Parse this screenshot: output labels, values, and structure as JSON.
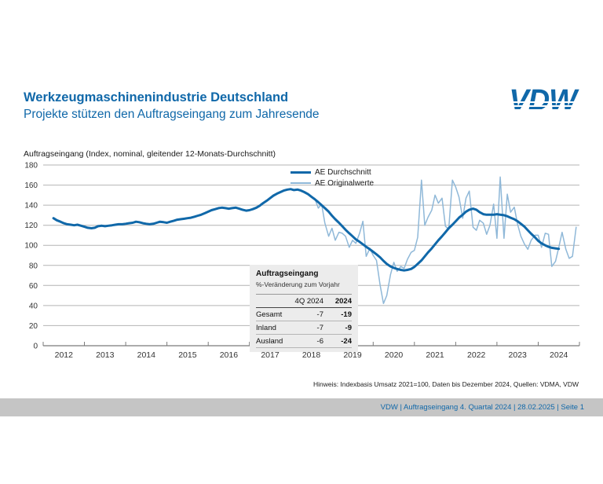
{
  "header": {
    "title": "Werkzeugmaschinenindustrie Deutschland",
    "subtitle": "Projekte stützen den Auftragseingang zum Jahresende",
    "logo_text": "VDW",
    "accent_color": "#1068A9"
  },
  "chart_data": {
    "type": "line",
    "title": "Auftragseingang (Index, nominal, gleitender 12-Monats-Durchschnitt)",
    "xlabel": "",
    "ylabel": "",
    "xlim": [
      2012,
      2025
    ],
    "ylim": [
      0,
      180
    ],
    "y_ticks": [
      0,
      20,
      40,
      60,
      80,
      100,
      120,
      140,
      160,
      180
    ],
    "x_ticks": [
      2012,
      2013,
      2014,
      2015,
      2016,
      2017,
      2018,
      2019,
      2020,
      2021,
      2022,
      2023,
      2024
    ],
    "grid": true,
    "legend_position": "top-center-inside",
    "colors": {
      "grid": "#b4b4b4",
      "axis": "#7b7b7b",
      "average": "#1068A9",
      "original": "#8FB8D8"
    },
    "series": [
      {
        "name": "AE Durchschnitt",
        "color": "#1068A9",
        "width": 3,
        "points": [
          [
            2012.25,
            127
          ],
          [
            2012.33,
            125
          ],
          [
            2012.42,
            123.5
          ],
          [
            2012.5,
            122
          ],
          [
            2012.58,
            121
          ],
          [
            2012.67,
            120.5
          ],
          [
            2012.75,
            120
          ],
          [
            2012.83,
            120.5
          ],
          [
            2012.92,
            119.5
          ],
          [
            2013.0,
            118.5
          ],
          [
            2013.08,
            117.5
          ],
          [
            2013.17,
            117
          ],
          [
            2013.25,
            117.5
          ],
          [
            2013.33,
            119
          ],
          [
            2013.42,
            119.5
          ],
          [
            2013.5,
            119
          ],
          [
            2013.58,
            119.5
          ],
          [
            2013.67,
            120
          ],
          [
            2013.75,
            120.5
          ],
          [
            2013.83,
            121
          ],
          [
            2013.92,
            121
          ],
          [
            2014.0,
            121.5
          ],
          [
            2014.08,
            122
          ],
          [
            2014.17,
            122.5
          ],
          [
            2014.25,
            123.5
          ],
          [
            2014.33,
            123
          ],
          [
            2014.42,
            122
          ],
          [
            2014.5,
            121.5
          ],
          [
            2014.58,
            121
          ],
          [
            2014.67,
            121.5
          ],
          [
            2014.75,
            122.5
          ],
          [
            2014.83,
            123.5
          ],
          [
            2014.92,
            123
          ],
          [
            2015.0,
            122.5
          ],
          [
            2015.08,
            123.5
          ],
          [
            2015.17,
            124.5
          ],
          [
            2015.25,
            125.5
          ],
          [
            2015.33,
            126
          ],
          [
            2015.42,
            126.5
          ],
          [
            2015.5,
            127
          ],
          [
            2015.58,
            127.5
          ],
          [
            2015.67,
            128.5
          ],
          [
            2015.75,
            129.5
          ],
          [
            2015.83,
            130.5
          ],
          [
            2015.92,
            132
          ],
          [
            2016.0,
            133.5
          ],
          [
            2016.08,
            135
          ],
          [
            2016.17,
            136
          ],
          [
            2016.25,
            137
          ],
          [
            2016.33,
            137.5
          ],
          [
            2016.42,
            137
          ],
          [
            2016.5,
            136.5
          ],
          [
            2016.58,
            137
          ],
          [
            2016.67,
            137.5
          ],
          [
            2016.75,
            136.5
          ],
          [
            2016.83,
            135.5
          ],
          [
            2016.92,
            134.5
          ],
          [
            2017.0,
            135
          ],
          [
            2017.08,
            136
          ],
          [
            2017.17,
            137.5
          ],
          [
            2017.25,
            139.5
          ],
          [
            2017.33,
            142
          ],
          [
            2017.42,
            144.5
          ],
          [
            2017.5,
            147
          ],
          [
            2017.58,
            149.5
          ],
          [
            2017.67,
            151.5
          ],
          [
            2017.75,
            153
          ],
          [
            2017.83,
            154.5
          ],
          [
            2017.92,
            155.5
          ],
          [
            2018.0,
            156
          ],
          [
            2018.08,
            155
          ],
          [
            2018.17,
            155.5
          ],
          [
            2018.25,
            154.5
          ],
          [
            2018.33,
            153
          ],
          [
            2018.42,
            151
          ],
          [
            2018.5,
            148.5
          ],
          [
            2018.58,
            146
          ],
          [
            2018.67,
            143
          ],
          [
            2018.75,
            140
          ],
          [
            2018.83,
            137
          ],
          [
            2018.92,
            133.5
          ],
          [
            2019.0,
            129.5
          ],
          [
            2019.08,
            126
          ],
          [
            2019.17,
            122.5
          ],
          [
            2019.25,
            119
          ],
          [
            2019.33,
            115.5
          ],
          [
            2019.42,
            112
          ],
          [
            2019.5,
            109
          ],
          [
            2019.58,
            106
          ],
          [
            2019.67,
            103.5
          ],
          [
            2019.75,
            101
          ],
          [
            2019.83,
            98.5
          ],
          [
            2019.92,
            96
          ],
          [
            2020.0,
            93.5
          ],
          [
            2020.08,
            91
          ],
          [
            2020.17,
            88
          ],
          [
            2020.25,
            84.5
          ],
          [
            2020.33,
            81.5
          ],
          [
            2020.42,
            79
          ],
          [
            2020.5,
            77.5
          ],
          [
            2020.58,
            76.5
          ],
          [
            2020.67,
            75.5
          ],
          [
            2020.75,
            75
          ],
          [
            2020.83,
            75.5
          ],
          [
            2020.92,
            76.5
          ],
          [
            2021.0,
            78.5
          ],
          [
            2021.08,
            81.5
          ],
          [
            2021.17,
            85
          ],
          [
            2021.25,
            89
          ],
          [
            2021.33,
            93
          ],
          [
            2021.42,
            97
          ],
          [
            2021.5,
            101
          ],
          [
            2021.58,
            105
          ],
          [
            2021.67,
            109
          ],
          [
            2021.75,
            113
          ],
          [
            2021.83,
            117
          ],
          [
            2021.92,
            120.5
          ],
          [
            2022.0,
            124
          ],
          [
            2022.08,
            127.5
          ],
          [
            2022.17,
            130.5
          ],
          [
            2022.25,
            133.5
          ],
          [
            2022.33,
            135.5
          ],
          [
            2022.42,
            136.5
          ],
          [
            2022.5,
            135.5
          ],
          [
            2022.58,
            133
          ],
          [
            2022.67,
            131
          ],
          [
            2022.75,
            130.5
          ],
          [
            2022.83,
            130.5
          ],
          [
            2022.92,
            130.5
          ],
          [
            2023.0,
            131
          ],
          [
            2023.08,
            130.5
          ],
          [
            2023.17,
            130
          ],
          [
            2023.25,
            129
          ],
          [
            2023.33,
            127.5
          ],
          [
            2023.42,
            126
          ],
          [
            2023.5,
            124
          ],
          [
            2023.58,
            121.5
          ],
          [
            2023.67,
            118.5
          ],
          [
            2023.75,
            115
          ],
          [
            2023.83,
            111.5
          ],
          [
            2023.92,
            108
          ],
          [
            2024.0,
            104.5
          ],
          [
            2024.08,
            102
          ],
          [
            2024.17,
            100
          ],
          [
            2024.25,
            98.5
          ],
          [
            2024.33,
            97.5
          ],
          [
            2024.42,
            97
          ],
          [
            2024.5,
            96.5
          ]
        ]
      },
      {
        "name": "AE Originalwerte",
        "color": "#8FB8D8",
        "width": 1.5,
        "points": [
          [
            2018.58,
            147
          ],
          [
            2018.67,
            137
          ],
          [
            2018.75,
            141
          ],
          [
            2018.83,
            122
          ],
          [
            2018.92,
            109
          ],
          [
            2019.0,
            117
          ],
          [
            2019.08,
            105
          ],
          [
            2019.17,
            113
          ],
          [
            2019.25,
            112
          ],
          [
            2019.33,
            109
          ],
          [
            2019.42,
            98
          ],
          [
            2019.5,
            105
          ],
          [
            2019.58,
            102
          ],
          [
            2019.67,
            112
          ],
          [
            2019.75,
            124
          ],
          [
            2019.83,
            89
          ],
          [
            2019.92,
            97
          ],
          [
            2020.0,
            90
          ],
          [
            2020.08,
            85
          ],
          [
            2020.17,
            60
          ],
          [
            2020.25,
            42
          ],
          [
            2020.33,
            50
          ],
          [
            2020.42,
            71
          ],
          [
            2020.5,
            83
          ],
          [
            2020.58,
            74
          ],
          [
            2020.67,
            79
          ],
          [
            2020.75,
            77
          ],
          [
            2020.83,
            86
          ],
          [
            2020.92,
            93
          ],
          [
            2021.0,
            95
          ],
          [
            2021.08,
            108
          ],
          [
            2021.17,
            165
          ],
          [
            2021.25,
            120
          ],
          [
            2021.33,
            128
          ],
          [
            2021.42,
            135
          ],
          [
            2021.5,
            150
          ],
          [
            2021.58,
            142
          ],
          [
            2021.67,
            147
          ],
          [
            2021.75,
            119
          ],
          [
            2021.83,
            116
          ],
          [
            2021.92,
            165
          ],
          [
            2022.0,
            158
          ],
          [
            2022.08,
            148
          ],
          [
            2022.17,
            127
          ],
          [
            2022.25,
            147
          ],
          [
            2022.33,
            154
          ],
          [
            2022.42,
            118
          ],
          [
            2022.5,
            115
          ],
          [
            2022.58,
            125
          ],
          [
            2022.67,
            122
          ],
          [
            2022.75,
            111
          ],
          [
            2022.83,
            120
          ],
          [
            2022.92,
            141
          ],
          [
            2023.0,
            107
          ],
          [
            2023.08,
            168
          ],
          [
            2023.17,
            107
          ],
          [
            2023.25,
            151
          ],
          [
            2023.33,
            133
          ],
          [
            2023.42,
            138
          ],
          [
            2023.5,
            121
          ],
          [
            2023.58,
            109
          ],
          [
            2023.67,
            101
          ],
          [
            2023.75,
            96
          ],
          [
            2023.83,
            105
          ],
          [
            2023.92,
            110
          ],
          [
            2024.0,
            110
          ],
          [
            2024.08,
            98
          ],
          [
            2024.17,
            112
          ],
          [
            2024.25,
            111
          ],
          [
            2024.33,
            79
          ],
          [
            2024.42,
            84
          ],
          [
            2024.5,
            98
          ],
          [
            2024.58,
            113
          ],
          [
            2024.67,
            96
          ],
          [
            2024.75,
            87
          ],
          [
            2024.83,
            89
          ],
          [
            2024.92,
            118
          ]
        ]
      }
    ]
  },
  "table": {
    "title": "Auftragseingang",
    "subtitle": "%-Veränderung zum Vorjahr",
    "columns": [
      "",
      "4Q 2024",
      "2024"
    ],
    "rows": [
      [
        "Gesamt",
        "-7",
        "-19"
      ],
      [
        "Inland",
        "-7",
        "-9"
      ],
      [
        "Ausland",
        "-6",
        "-24"
      ]
    ]
  },
  "footnote": {
    "text": "Hinweis: Indexbasis Umsatz 2021=100, Daten bis Dezember 2024, Quellen: VDMA, VDW"
  },
  "footer": {
    "text": "VDW  | Auftragseingang 4. Quartal 2024 |  28.02.2025  | Seite 1"
  }
}
